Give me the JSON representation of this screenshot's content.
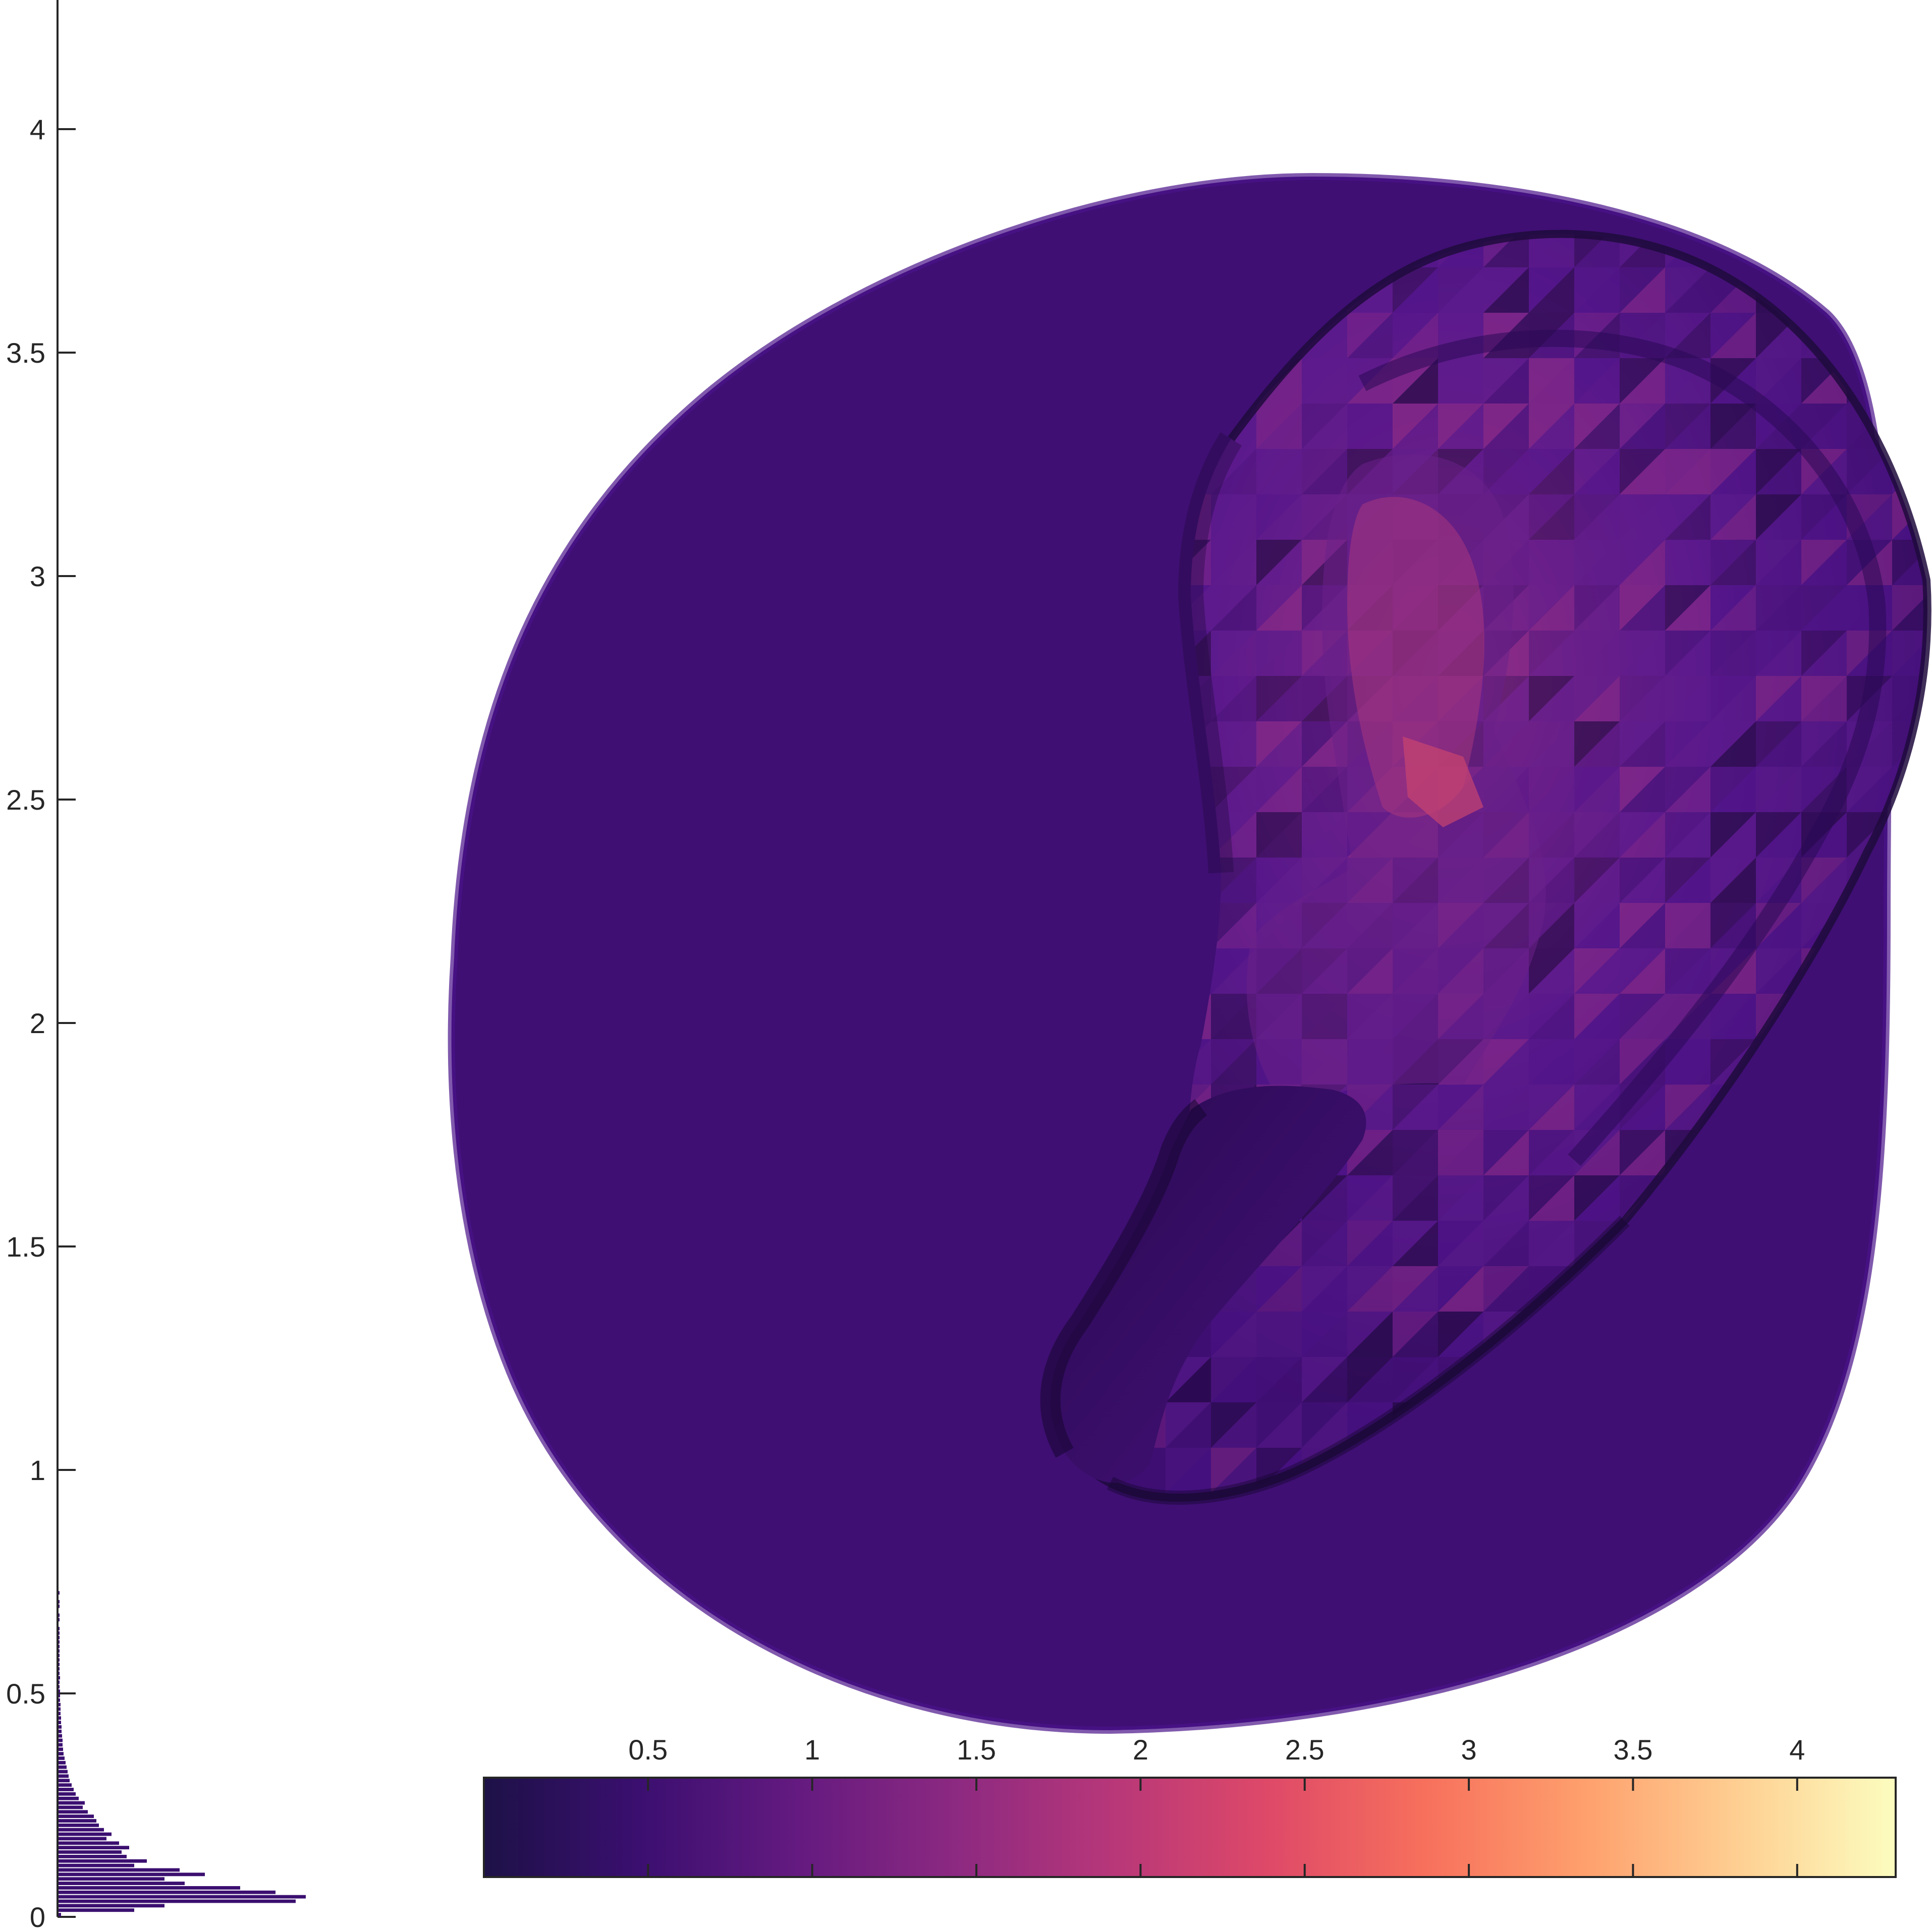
{
  "chart_data": [
    {
      "type": "histogram",
      "orientation": "horizontal",
      "ylim": [
        0,
        4.3
      ],
      "yticks": [
        "0",
        "0.5",
        "1",
        "1.5",
        "2",
        "2.5",
        "3",
        "3.5",
        "4"
      ],
      "yticks_values": [
        0,
        0.5,
        1,
        1.5,
        2,
        2.5,
        3,
        3.5,
        4
      ],
      "bar_color": "#3b0f70",
      "bin_width": 0.01,
      "bin_counts": [
        5,
        150,
        210,
        470,
        490,
        430,
        360,
        250,
        210,
        290,
        240,
        150,
        175,
        135,
        125,
        140,
        120,
        95,
        105,
        90,
        80,
        75,
        70,
        58,
        48,
        52,
        40,
        34,
        30,
        26,
        22,
        20,
        18,
        16,
        14,
        12,
        10,
        9,
        8,
        8,
        7,
        6,
        6,
        5,
        5,
        4,
        4,
        4,
        3,
        3,
        3,
        2,
        2,
        3,
        2,
        2,
        2,
        1,
        1,
        2,
        1,
        1,
        1,
        1,
        1,
        0,
        1,
        1,
        0,
        1,
        1,
        0,
        1
      ]
    },
    {
      "type": "heatmap",
      "subtype": "colorbar",
      "colormap": "magma",
      "clim": [
        0,
        4.3
      ],
      "xticks": [
        "0.5",
        "1",
        "1.5",
        "2",
        "2.5",
        "3",
        "3.5",
        "4"
      ],
      "xticks_values": [
        0.5,
        1,
        1.5,
        2,
        2.5,
        3,
        3.5,
        4
      ],
      "colormap_stops": [
        "#1d1147",
        "#3b0f70",
        "#641a80",
        "#8c2981",
        "#b73779",
        "#de4968",
        "#f7705c",
        "#fe9f6d",
        "#fecf92",
        "#fcfdbf"
      ]
    }
  ],
  "surface": {
    "colors": {
      "base": "#3f0f73",
      "base_light": "#4c128a",
      "shadow": "#1c0838",
      "mid": "#5a1a8c",
      "bright": "#8e2c86",
      "hot": "#c24474"
    }
  }
}
